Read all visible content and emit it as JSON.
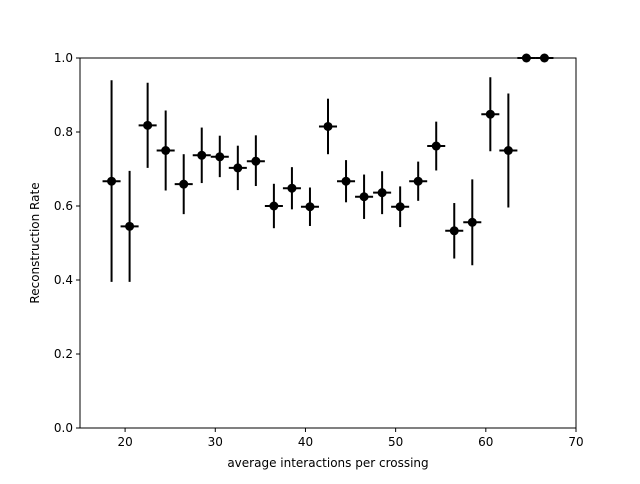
{
  "chart_data": {
    "type": "scatter",
    "title": "",
    "xlabel": "average interactions per crossing",
    "ylabel": "Reconstruction Rate",
    "xlim": [
      15,
      70
    ],
    "ylim": [
      0.0,
      1.0
    ],
    "x_ticks": [
      20,
      30,
      40,
      50,
      60,
      70
    ],
    "x_tick_labels": [
      "20",
      "30",
      "40",
      "50",
      "60",
      "70"
    ],
    "y_ticks": [
      0.0,
      0.2,
      0.4,
      0.6,
      0.8,
      1.0
    ],
    "y_tick_labels": [
      "0.0",
      "0.2",
      "0.4",
      "0.6",
      "0.8",
      "1.0"
    ],
    "grid": false,
    "legend": "none",
    "marker_color": "#000000",
    "x_bin_half_width": 1.0,
    "points": [
      {
        "x": 18.5,
        "y": 0.667,
        "y_low": 0.395,
        "y_high": 0.94
      },
      {
        "x": 20.5,
        "y": 0.545,
        "y_low": 0.395,
        "y_high": 0.695
      },
      {
        "x": 22.5,
        "y": 0.818,
        "y_low": 0.703,
        "y_high": 0.933
      },
      {
        "x": 24.5,
        "y": 0.75,
        "y_low": 0.642,
        "y_high": 0.858
      },
      {
        "x": 26.5,
        "y": 0.659,
        "y_low": 0.578,
        "y_high": 0.74
      },
      {
        "x": 28.5,
        "y": 0.737,
        "y_low": 0.662,
        "y_high": 0.812
      },
      {
        "x": 30.5,
        "y": 0.733,
        "y_low": 0.678,
        "y_high": 0.79
      },
      {
        "x": 32.5,
        "y": 0.703,
        "y_low": 0.643,
        "y_high": 0.763
      },
      {
        "x": 34.5,
        "y": 0.721,
        "y_low": 0.654,
        "y_high": 0.791
      },
      {
        "x": 36.5,
        "y": 0.6,
        "y_low": 0.54,
        "y_high": 0.66
      },
      {
        "x": 38.5,
        "y": 0.648,
        "y_low": 0.591,
        "y_high": 0.705
      },
      {
        "x": 40.5,
        "y": 0.598,
        "y_low": 0.546,
        "y_high": 0.65
      },
      {
        "x": 42.5,
        "y": 0.815,
        "y_low": 0.74,
        "y_high": 0.89
      },
      {
        "x": 44.5,
        "y": 0.667,
        "y_low": 0.61,
        "y_high": 0.724
      },
      {
        "x": 46.5,
        "y": 0.625,
        "y_low": 0.565,
        "y_high": 0.685
      },
      {
        "x": 48.5,
        "y": 0.636,
        "y_low": 0.578,
        "y_high": 0.694
      },
      {
        "x": 50.5,
        "y": 0.598,
        "y_low": 0.543,
        "y_high": 0.653
      },
      {
        "x": 52.5,
        "y": 0.667,
        "y_low": 0.614,
        "y_high": 0.72
      },
      {
        "x": 54.5,
        "y": 0.762,
        "y_low": 0.696,
        "y_high": 0.828
      },
      {
        "x": 56.5,
        "y": 0.533,
        "y_low": 0.458,
        "y_high": 0.608
      },
      {
        "x": 58.5,
        "y": 0.556,
        "y_low": 0.44,
        "y_high": 0.672
      },
      {
        "x": 60.5,
        "y": 0.848,
        "y_low": 0.748,
        "y_high": 0.948
      },
      {
        "x": 62.5,
        "y": 0.75,
        "y_low": 0.596,
        "y_high": 0.904
      },
      {
        "x": 64.5,
        "y": 1.0,
        "y_low": 1.0,
        "y_high": 1.0
      },
      {
        "x": 66.5,
        "y": 1.0,
        "y_low": 1.0,
        "y_high": 1.0
      }
    ]
  }
}
